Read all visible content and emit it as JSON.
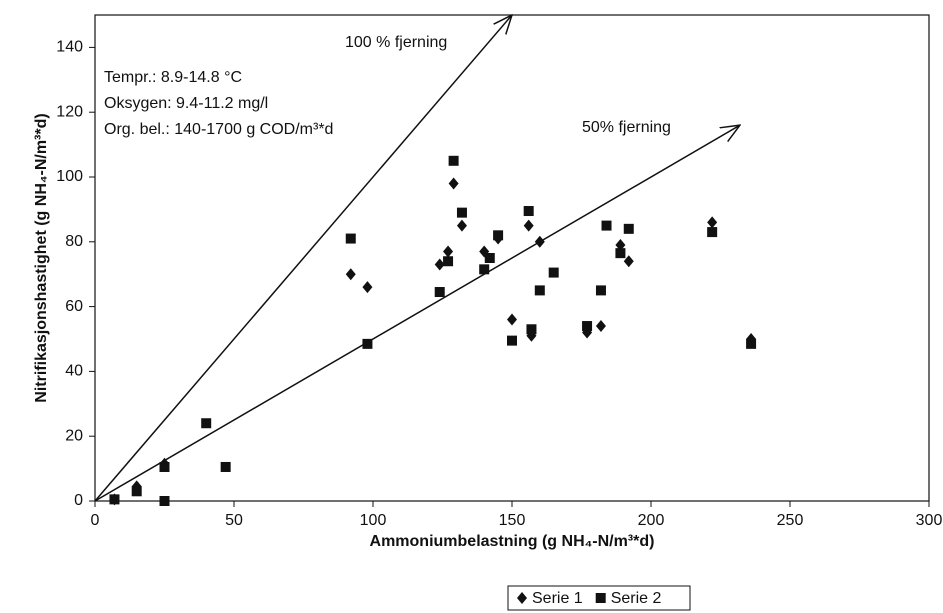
{
  "chart_data": {
    "type": "scatter",
    "xlabel": "Ammoniumbelastning (g NH₄-N/m³*d)",
    "ylabel": "Nitrifikasjonshastighet (g NH₄-N/m³*d)",
    "annotations": [
      "Tempr.: 8.9-14.8 °C",
      "Oksygen: 9.4-11.2 mg/l",
      "Org. bel.: 140-1700 g COD/m³*d"
    ],
    "reference_lines": [
      {
        "label": "100 % fjerning",
        "x": [
          0,
          150
        ],
        "y": [
          0,
          150
        ]
      },
      {
        "label": "50% fjerning",
        "x": [
          0,
          232
        ],
        "y": [
          0,
          116
        ]
      }
    ],
    "xlim": [
      0,
      300
    ],
    "xticks": [
      0,
      50,
      100,
      150,
      200,
      250,
      300
    ],
    "ylim": [
      0,
      150
    ],
    "yticks": [
      0,
      20,
      40,
      60,
      80,
      100,
      120,
      140
    ],
    "grid": false,
    "legend": "bottom-right",
    "series": [
      {
        "name": "Serie 1",
        "color": "#111111",
        "marker": "diamond",
        "x": [
          7,
          15,
          25,
          92,
          98,
          124,
          127,
          129,
          132,
          140,
          145,
          150,
          156,
          157,
          160,
          177,
          182,
          189,
          192,
          222,
          236
        ],
        "values": [
          0.5,
          4.5,
          11.5,
          70,
          66,
          73,
          77,
          98,
          85,
          77,
          81,
          56,
          85,
          51,
          80,
          52,
          54,
          79,
          74,
          86,
          50
        ]
      },
      {
        "name": "Serie 2",
        "color": "#111111",
        "marker": "square",
        "x": [
          7,
          15,
          25,
          25,
          40,
          47,
          92,
          98,
          124,
          127,
          129,
          132,
          140,
          142,
          145,
          150,
          156,
          157,
          160,
          165,
          177,
          182,
          184,
          189,
          192,
          222,
          236
        ],
        "values": [
          0.5,
          3,
          0,
          10.5,
          24,
          10.5,
          81,
          48.5,
          64.5,
          74,
          105,
          89,
          71.5,
          75,
          82,
          49.5,
          89.5,
          53,
          65,
          70.5,
          54,
          65,
          85,
          76.5,
          84,
          83,
          48.5
        ]
      }
    ]
  }
}
